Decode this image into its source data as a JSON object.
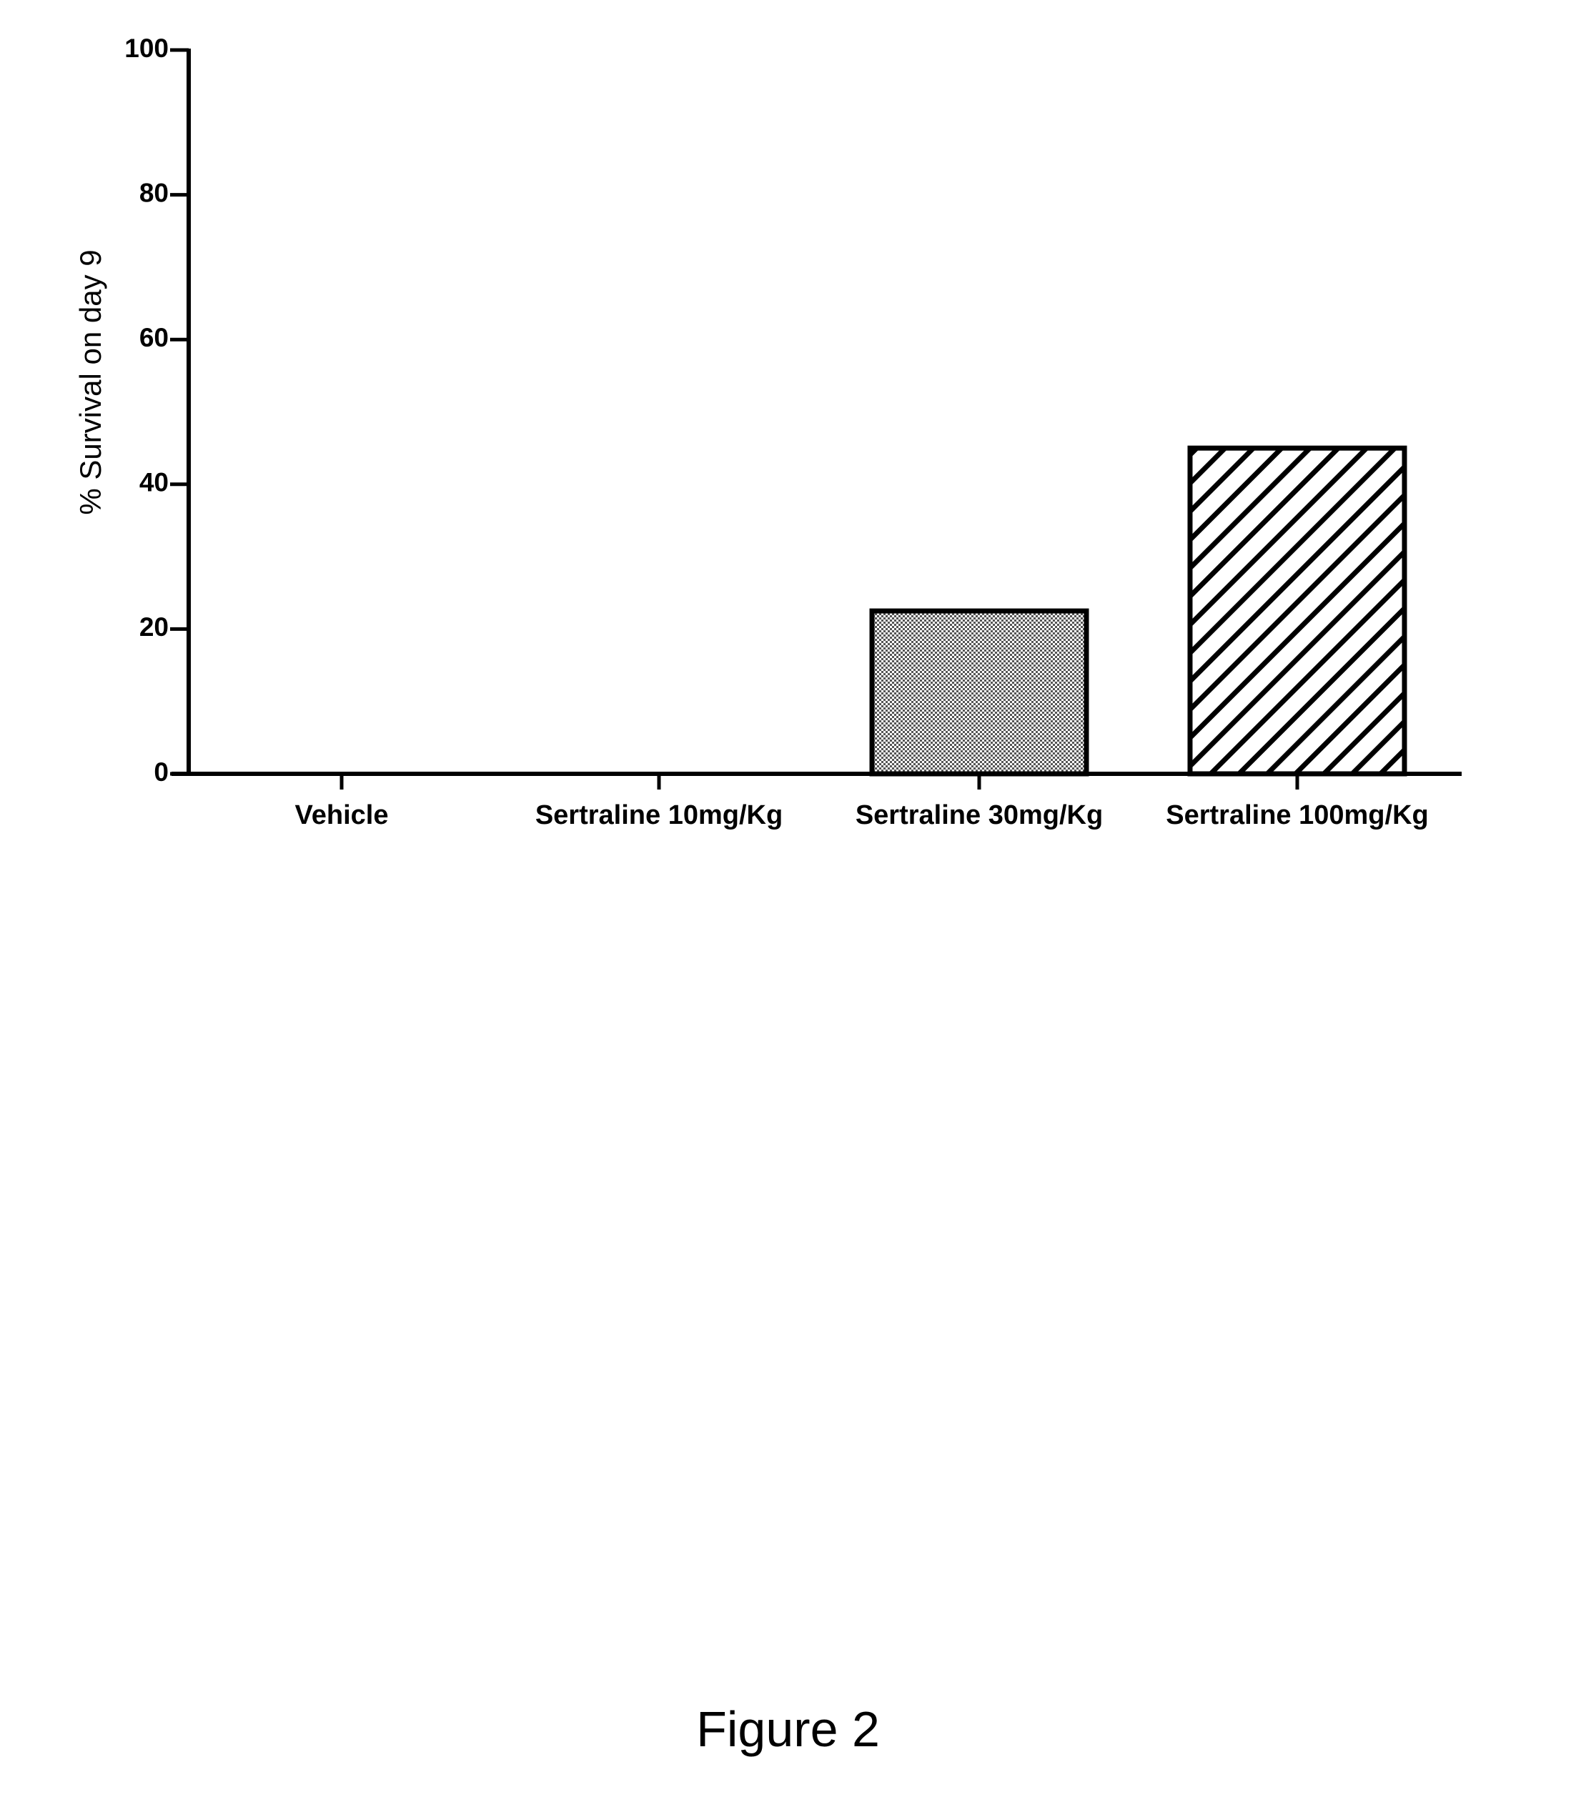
{
  "chart_data": {
    "type": "bar",
    "categories": [
      "Vehicle",
      "Sertraline 10mg/Kg",
      "Sertraline 30mg/Kg",
      "Sertraline 100mg/Kg"
    ],
    "values": [
      0,
      0,
      22.5,
      45
    ],
    "patterns": [
      "none",
      "none",
      "dotted",
      "diagonal-hatch"
    ],
    "xlabel": "",
    "ylabel": "% Survival on day 9",
    "ylim": [
      0,
      100
    ],
    "yticks": [
      0,
      20,
      40,
      60,
      80,
      100
    ],
    "grid": false,
    "legend": "none",
    "colors": {
      "bar_stroke": "#000000",
      "dotted_fill": "#bdbdbd",
      "hatch_line": "#000000",
      "axis": "#000000"
    }
  },
  "caption": "Figure 2"
}
